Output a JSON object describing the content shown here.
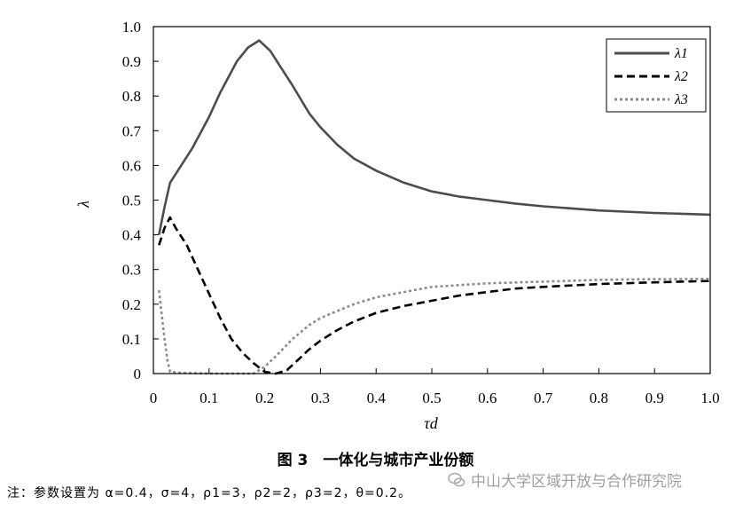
{
  "chart_data": {
    "type": "line",
    "xlabel": "τd",
    "ylabel": "λ",
    "xlim": [
      0,
      1.0
    ],
    "ylim": [
      0,
      1.0
    ],
    "x_ticks": [
      "0",
      "0.1",
      "0.2",
      "0.3",
      "0.4",
      "0.5",
      "0.6",
      "0.7",
      "0.8",
      "0.9",
      "1.0"
    ],
    "y_ticks": [
      "0",
      "0.1",
      "0.2",
      "0.3",
      "0.4",
      "0.5",
      "0.6",
      "0.7",
      "0.8",
      "0.9",
      "1.0"
    ],
    "grid": false,
    "legend_position": "top-right",
    "series": [
      {
        "name": "λ1",
        "color": "#4d4d4d",
        "style": "solid",
        "points": [
          [
            0.01,
            0.4
          ],
          [
            0.02,
            0.48
          ],
          [
            0.03,
            0.55
          ],
          [
            0.05,
            0.6
          ],
          [
            0.07,
            0.65
          ],
          [
            0.1,
            0.74
          ],
          [
            0.12,
            0.81
          ],
          [
            0.15,
            0.9
          ],
          [
            0.17,
            0.94
          ],
          [
            0.19,
            0.96
          ],
          [
            0.21,
            0.93
          ],
          [
            0.23,
            0.88
          ],
          [
            0.25,
            0.83
          ],
          [
            0.28,
            0.75
          ],
          [
            0.3,
            0.71
          ],
          [
            0.33,
            0.66
          ],
          [
            0.36,
            0.62
          ],
          [
            0.4,
            0.585
          ],
          [
            0.45,
            0.55
          ],
          [
            0.5,
            0.525
          ],
          [
            0.55,
            0.51
          ],
          [
            0.6,
            0.5
          ],
          [
            0.65,
            0.49
          ],
          [
            0.7,
            0.482
          ],
          [
            0.8,
            0.47
          ],
          [
            0.9,
            0.463
          ],
          [
            1.0,
            0.458
          ]
        ]
      },
      {
        "name": "λ2",
        "color": "#000000",
        "style": "dashed",
        "points": [
          [
            0.01,
            0.37
          ],
          [
            0.02,
            0.42
          ],
          [
            0.03,
            0.45
          ],
          [
            0.04,
            0.42
          ],
          [
            0.06,
            0.37
          ],
          [
            0.08,
            0.3
          ],
          [
            0.1,
            0.23
          ],
          [
            0.12,
            0.16
          ],
          [
            0.14,
            0.1
          ],
          [
            0.16,
            0.06
          ],
          [
            0.18,
            0.03
          ],
          [
            0.2,
            0.005
          ],
          [
            0.22,
            0.0
          ],
          [
            0.24,
            0.01
          ],
          [
            0.26,
            0.04
          ],
          [
            0.28,
            0.07
          ],
          [
            0.3,
            0.095
          ],
          [
            0.33,
            0.125
          ],
          [
            0.36,
            0.15
          ],
          [
            0.4,
            0.175
          ],
          [
            0.45,
            0.195
          ],
          [
            0.5,
            0.21
          ],
          [
            0.55,
            0.225
          ],
          [
            0.6,
            0.235
          ],
          [
            0.65,
            0.245
          ],
          [
            0.7,
            0.25
          ],
          [
            0.8,
            0.258
          ],
          [
            0.9,
            0.263
          ],
          [
            1.0,
            0.267
          ]
        ]
      },
      {
        "name": "λ3",
        "color": "#8c8c8c",
        "style": "dotted",
        "points": [
          [
            0.01,
            0.24
          ],
          [
            0.015,
            0.17
          ],
          [
            0.02,
            0.1
          ],
          [
            0.025,
            0.04
          ],
          [
            0.03,
            0.005
          ],
          [
            0.05,
            0.002
          ],
          [
            0.1,
            0.0
          ],
          [
            0.15,
            0.0
          ],
          [
            0.18,
            0.0
          ],
          [
            0.2,
            0.02
          ],
          [
            0.22,
            0.05
          ],
          [
            0.25,
            0.1
          ],
          [
            0.28,
            0.14
          ],
          [
            0.3,
            0.16
          ],
          [
            0.33,
            0.18
          ],
          [
            0.36,
            0.2
          ],
          [
            0.4,
            0.22
          ],
          [
            0.45,
            0.235
          ],
          [
            0.5,
            0.25
          ],
          [
            0.55,
            0.255
          ],
          [
            0.6,
            0.26
          ],
          [
            0.7,
            0.265
          ],
          [
            0.8,
            0.27
          ],
          [
            0.9,
            0.272
          ],
          [
            1.0,
            0.273
          ]
        ]
      }
    ]
  },
  "caption": "图 3　一体化与城市产业份额",
  "note": "注：参数设置为 α=0.4，σ=4，ρ1=3，ρ2=2，ρ3=2，θ=0.2。",
  "watermark": "中山大学区域开放与合作研究院"
}
